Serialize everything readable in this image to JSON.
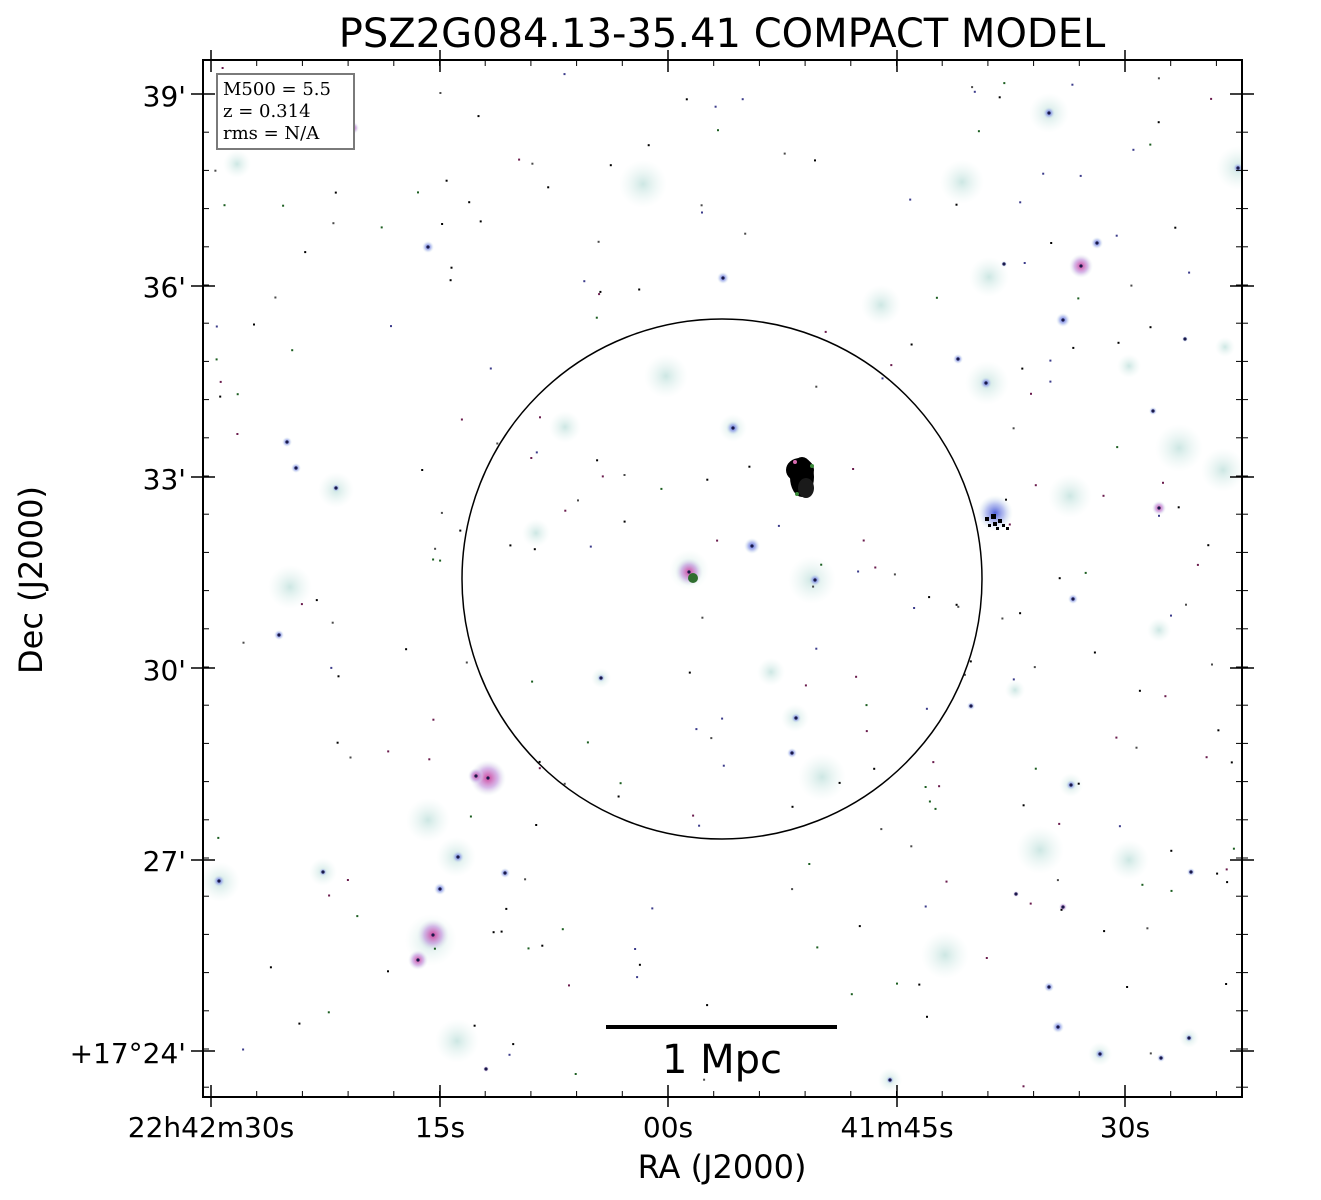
{
  "title": "PSZ2G084.13-35.41 COMPACT MODEL",
  "axes": {
    "x_label": "RA (J2000)",
    "y_label": "Dec (J2000)",
    "x_ticks": [
      "22h42m30s",
      "15s",
      "00s",
      "41m45s",
      "30s"
    ],
    "y_ticks": [
      "39'",
      "36'",
      "33'",
      "30'",
      "27'",
      "+17°24'"
    ]
  },
  "info_box": {
    "line1": "M500 = 5.5",
    "line2": "z = 0.314",
    "line3": "rms = N/A"
  },
  "scale_bar": {
    "label": "1 Mpc"
  },
  "colors": {
    "halo": "#d9ecea",
    "blue_source": "#5a6fd6",
    "pink_source": "#d86ab0",
    "green_source": "#3a8a3a",
    "frame": "#000000"
  }
}
